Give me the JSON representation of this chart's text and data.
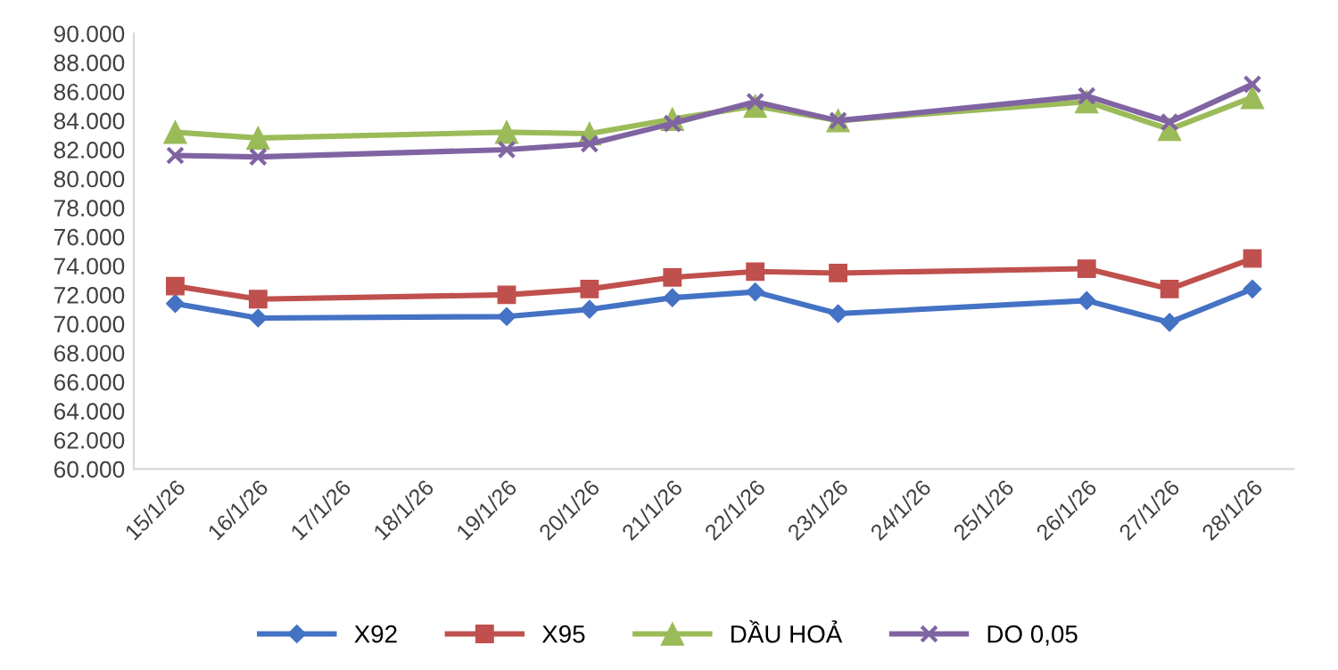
{
  "chart_data": {
    "type": "line",
    "categories": [
      "15/1/26",
      "16/1/26",
      "17/1/26",
      "18/1/26",
      "19/1/26",
      "20/1/26",
      "21/1/26",
      "22/1/26",
      "23/1/26",
      "24/1/26",
      "25/1/26",
      "26/1/26",
      "27/1/26",
      "28/1/26"
    ],
    "series": [
      {
        "name": "X92",
        "color": "#4472c4",
        "marker": "diamond",
        "values": [
          71400,
          70400,
          null,
          null,
          70500,
          71000,
          71800,
          72200,
          70700,
          null,
          null,
          71600,
          70100,
          72400
        ]
      },
      {
        "name": "X95",
        "color": "#c0504d",
        "marker": "square",
        "values": [
          72600,
          71700,
          null,
          null,
          72000,
          72400,
          73200,
          73600,
          73500,
          null,
          null,
          73800,
          72400,
          74500
        ]
      },
      {
        "name": "DẦU HOẢ",
        "color": "#9bbb59",
        "marker": "triangle",
        "values": [
          83200,
          82800,
          null,
          null,
          83200,
          83100,
          84100,
          85000,
          84000,
          null,
          null,
          85300,
          83400,
          85600
        ]
      },
      {
        "name": "DO 0,05",
        "color": "#8064a2",
        "marker": "cross",
        "values": [
          81600,
          81500,
          null,
          null,
          82000,
          82400,
          83800,
          85300,
          84000,
          null,
          null,
          85700,
          83900,
          86500
        ]
      }
    ],
    "ylim": [
      60000,
      90000
    ],
    "yticks": [
      {
        "value": 60000,
        "label": "60.000"
      },
      {
        "value": 62000,
        "label": "62.000"
      },
      {
        "value": 64000,
        "label": "64.000"
      },
      {
        "value": 66000,
        "label": "66.000"
      },
      {
        "value": 68000,
        "label": "68.000"
      },
      {
        "value": 70000,
        "label": "70.000"
      },
      {
        "value": 72000,
        "label": "72.000"
      },
      {
        "value": 74000,
        "label": "74.000"
      },
      {
        "value": 76000,
        "label": "76.000"
      },
      {
        "value": 78000,
        "label": "78.000"
      },
      {
        "value": 80000,
        "label": "80.000"
      },
      {
        "value": 82000,
        "label": "82.000"
      },
      {
        "value": 84000,
        "label": "84.000"
      },
      {
        "value": 86000,
        "label": "86.000"
      },
      {
        "value": 88000,
        "label": "88.000"
      },
      {
        "value": 90000,
        "label": "90.000"
      }
    ],
    "grid": false,
    "legend": "bottom",
    "line_style": "solid"
  }
}
